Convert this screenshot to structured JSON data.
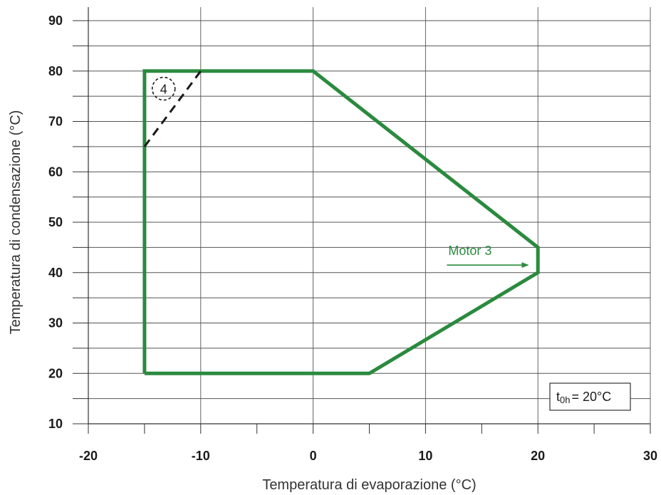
{
  "chart_data": {
    "type": "line",
    "xlabel": "Temperatura di evaporazione (°C)",
    "ylabel": "Temperatura di condensazione (°C)",
    "xlim": [
      -20,
      30
    ],
    "ylim": [
      10,
      92
    ],
    "x_ticks": [
      -20,
      -10,
      0,
      10,
      20,
      30
    ],
    "y_ticks": [
      10,
      20,
      30,
      40,
      50,
      60,
      70,
      80,
      90
    ],
    "grid": true,
    "series": [
      {
        "style": "solid",
        "color": "#2a8a3e",
        "points": [
          {
            "x": -15,
            "y": 20
          },
          {
            "x": -15,
            "y": 80
          },
          {
            "x": 0,
            "y": 80
          },
          {
            "x": 20,
            "y": 45
          },
          {
            "x": 20,
            "y": 40
          },
          {
            "x": 5,
            "y": 20
          },
          {
            "x": -15,
            "y": 20
          }
        ]
      },
      {
        "style": "dashed",
        "color": "#1a1a1a",
        "points": [
          {
            "x": -15,
            "y": 65
          },
          {
            "x": -10,
            "y": 80
          }
        ]
      }
    ],
    "annotations": [
      {
        "kind": "arrow-label",
        "text": "Motor 3",
        "color": "#2a8a3e",
        "arrow_tip": {
          "x": 19,
          "y": 41.5
        }
      },
      {
        "kind": "circled-number",
        "text": "4",
        "at": {
          "x": -13.3,
          "y": 76.5
        }
      }
    ],
    "box_label": {
      "main": "t",
      "sub": "0h",
      "rest": "= 20°C"
    }
  }
}
